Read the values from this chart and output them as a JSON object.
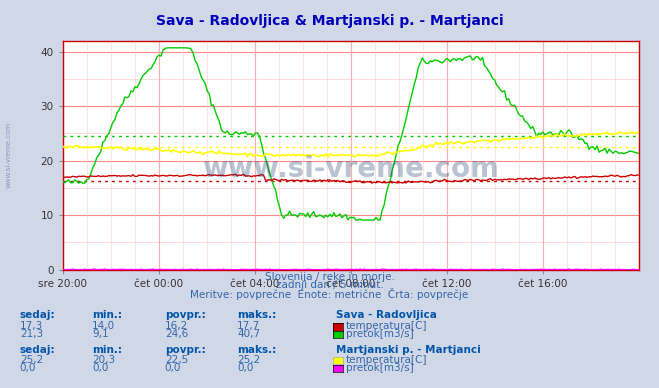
{
  "title": "Sava - Radovljica & Martjanski p. - Martjanci",
  "title_color": "#0000bb",
  "bg_color": "#d0d8e8",
  "plot_bg_color": "#ffffff",
  "grid_color_major": "#ff8888",
  "grid_color_minor": "#ffcccc",
  "xlabel_ticks": [
    "sre 20:00",
    "čet 00:00",
    "čet 04:00",
    "čet 08:00",
    "čet 12:00",
    "čet 16:00"
  ],
  "ylim": [
    0,
    42
  ],
  "yticks": [
    0,
    10,
    20,
    30,
    40
  ],
  "n_points": 288,
  "subtitle1": "Slovenija / reke in morje.",
  "subtitle2": "zadnji dan / 5 minut.",
  "subtitle3": "Meritve: povprečne  Enote: metrične  Črta: povprečje",
  "subtitle_color": "#3366aa",
  "watermark": "www.si-vreme.com",
  "watermark_color": "#1a3a6b",
  "side_watermark": "www.si-vreme.com",
  "side_watermark_color": "#8899bb",
  "table_header_color": "#0055aa",
  "table_value_color": "#3366aa",
  "station1_name": "Sava - Radovljica",
  "station1_temp_color": "#cc0000",
  "station1_flow_color": "#00cc00",
  "station1_sedaj": "17,3",
  "station1_min": "14,0",
  "station1_povpr": "16,2",
  "station1_maks": "17,7",
  "station1_flow_sedaj": "21,3",
  "station1_flow_min": "9,1",
  "station1_flow_povpr": "24,6",
  "station1_flow_maks": "40,7",
  "station2_name": "Martjanski p. - Martjanci",
  "station2_temp_color": "#ffff00",
  "station2_flow_color": "#ff00ff",
  "station2_sedaj": "25,2",
  "station2_min": "20,3",
  "station2_povpr": "22,5",
  "station2_maks": "25,2",
  "station2_flow_sedaj": "0,0",
  "station2_flow_min": "0,0",
  "station2_flow_povpr": "0,0",
  "station2_flow_maks": "0,0",
  "avg_temp1": 16.2,
  "avg_flow1": 24.6,
  "avg_temp2": 22.5,
  "avg_flow2": 0.0
}
